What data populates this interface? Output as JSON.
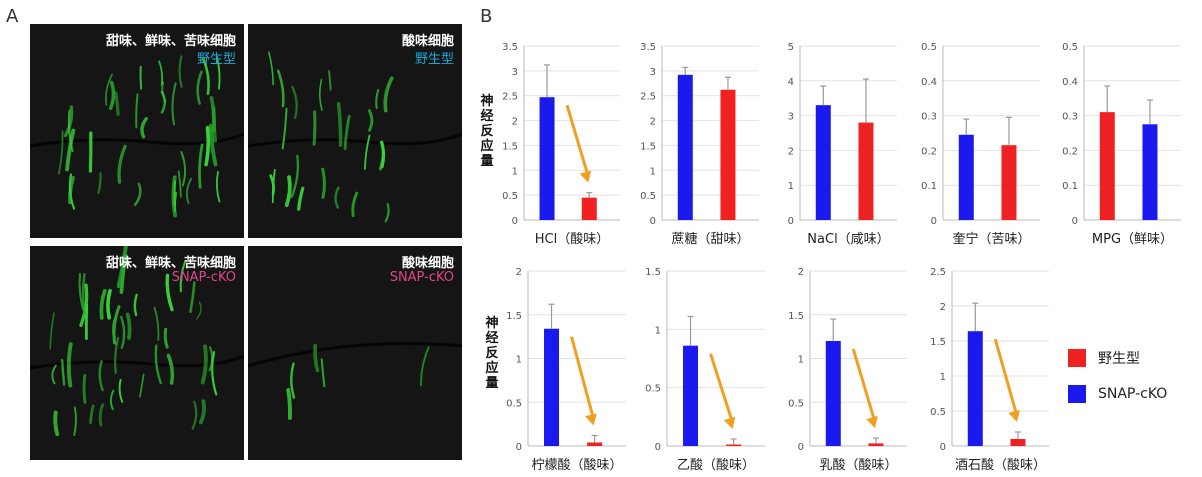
{
  "figure": {
    "panel_a_label": "A",
    "panel_b_label": "B",
    "y_label_chars": [
      "神",
      "经",
      "反",
      "应",
      "量"
    ],
    "legend": [
      {
        "label": "野生型",
        "color": "#ee2222"
      },
      {
        "label": "SNAP-cKO",
        "color": "#1a1aee"
      }
    ],
    "colors": {
      "wildtype": "#ee2222",
      "knockout": "#1a1aee",
      "arrow": "#f0a020",
      "wt_caption": "#1aa7d6",
      "ko_caption": "#e0458c"
    }
  },
  "micrographs": [
    {
      "line1": "甜味、鲜味、苦味细胞",
      "line2": "野生型",
      "line2_color": "#1aa7d6"
    },
    {
      "line1": "酸味细胞",
      "line2": "野生型",
      "line2_color": "#1aa7d6"
    },
    {
      "line1": "甜味、鲜味、苦味细胞",
      "line2": "SNAP-cKO",
      "line2_color": "#e0458c"
    },
    {
      "line1": "酸味细胞",
      "line2": "SNAP-cKO",
      "line2_color": "#e0458c"
    }
  ],
  "chart_data": [
    {
      "type": "bar",
      "xlabel": "HCl（酸味）",
      "ylim": [
        0,
        3.5
      ],
      "yticks": [
        "0",
        "0.5",
        "1",
        "1.5",
        "2",
        "2.5",
        "3",
        "3.5"
      ],
      "bars": [
        {
          "series": "SNAP-cKO",
          "value": 2.47,
          "error": 0.65
        },
        {
          "series": "野生型",
          "value": 0.45,
          "error": 0.1
        }
      ],
      "arrow": true
    },
    {
      "type": "bar",
      "xlabel": "蔗糖（甜味）",
      "ylim": [
        0,
        3.5
      ],
      "yticks": [
        "0",
        "0.5",
        "1",
        "1.5",
        "2",
        "2.5",
        "3",
        "3.5"
      ],
      "bars": [
        {
          "series": "SNAP-cKO",
          "value": 2.92,
          "error": 0.15
        },
        {
          "series": "野生型",
          "value": 2.62,
          "error": 0.25
        }
      ],
      "arrow": false
    },
    {
      "type": "bar",
      "xlabel": "NaCl（咸味）",
      "ylim": [
        0,
        5
      ],
      "yticks": [
        "0",
        "1",
        "2",
        "3",
        "4",
        "5"
      ],
      "bars": [
        {
          "series": "SNAP-cKO",
          "value": 3.3,
          "error": 0.55
        },
        {
          "series": "野生型",
          "value": 2.8,
          "error": 1.25
        }
      ],
      "arrow": false
    },
    {
      "type": "bar",
      "xlabel": "奎宁（苦味）",
      "ylim": [
        0,
        0.5
      ],
      "yticks": [
        "0",
        "0.1",
        "0.2",
        "0.3",
        "0.4",
        "0.5"
      ],
      "bars": [
        {
          "series": "SNAP-cKO",
          "value": 0.245,
          "error": 0.045
        },
        {
          "series": "野生型",
          "value": 0.215,
          "error": 0.08
        }
      ],
      "arrow": false
    },
    {
      "type": "bar",
      "xlabel": "MPG（鲜味）",
      "ylim": [
        0,
        0.5
      ],
      "yticks": [
        "0",
        "0.1",
        "0.2",
        "0.3",
        "0.4",
        "0.5"
      ],
      "bars": [
        {
          "series": "野生型",
          "value": 0.31,
          "error": 0.075
        },
        {
          "series": "SNAP-cKO",
          "value": 0.275,
          "error": 0.07
        }
      ],
      "arrow": false
    },
    {
      "type": "bar",
      "xlabel": "柠檬酸（酸味）",
      "ylim": [
        0,
        2
      ],
      "yticks": [
        "0",
        "0.5",
        "1",
        "1.5",
        "2"
      ],
      "bars": [
        {
          "series": "SNAP-cKO",
          "value": 1.34,
          "error": 0.28
        },
        {
          "series": "野生型",
          "value": 0.04,
          "error": 0.08
        }
      ],
      "arrow": true
    },
    {
      "type": "bar",
      "xlabel": "乙酸（酸味）",
      "ylim": [
        0,
        1.5
      ],
      "yticks": [
        "0",
        "0.5",
        "1",
        "1.5"
      ],
      "bars": [
        {
          "series": "SNAP-cKO",
          "value": 0.86,
          "error": 0.25
        },
        {
          "series": "野生型",
          "value": 0.0,
          "error": 0.06
        }
      ],
      "arrow": true
    },
    {
      "type": "bar",
      "xlabel": "乳酸（酸味）",
      "ylim": [
        0,
        2
      ],
      "yticks": [
        "0",
        "0.5",
        "1",
        "1.5",
        "2"
      ],
      "bars": [
        {
          "series": "SNAP-cKO",
          "value": 1.2,
          "error": 0.25
        },
        {
          "series": "野生型",
          "value": 0.03,
          "error": 0.06
        }
      ],
      "arrow": true
    },
    {
      "type": "bar",
      "xlabel": "酒石酸（酸味）",
      "ylim": [
        0,
        2.5
      ],
      "yticks": [
        "0",
        "0.5",
        "1",
        "1.5",
        "2",
        "2.5"
      ],
      "bars": [
        {
          "series": "SNAP-cKO",
          "value": 1.64,
          "error": 0.4
        },
        {
          "series": "野生型",
          "value": 0.1,
          "error": 0.1
        }
      ],
      "arrow": true
    }
  ]
}
